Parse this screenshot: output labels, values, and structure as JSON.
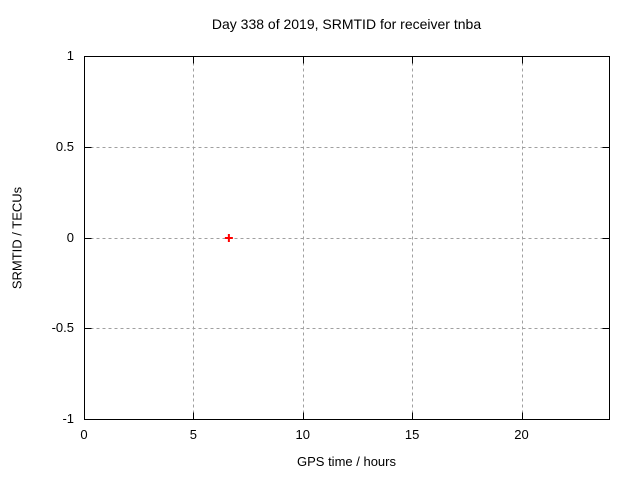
{
  "chart_data": {
    "type": "scatter",
    "title": "Day 338 of 2019, SRMTID for receiver tnba",
    "xlabel": "GPS time / hours",
    "ylabel": "SRMTID / TECUs",
    "xlim": [
      0,
      24
    ],
    "ylim": [
      -1,
      1
    ],
    "x_ticks": [
      0,
      5,
      10,
      15,
      20
    ],
    "y_ticks": [
      1,
      0.5,
      0,
      -0.5,
      -1
    ],
    "grid": true,
    "legend_position": "none",
    "background_color": "#ffffff",
    "border_color": "#000000",
    "grid_color": "#a0a0a0",
    "series": [
      {
        "name": "SRMTID",
        "marker": "plus",
        "color": "#ff0000",
        "points": [
          {
            "x": 6.6,
            "y": 0.0
          }
        ]
      }
    ]
  }
}
